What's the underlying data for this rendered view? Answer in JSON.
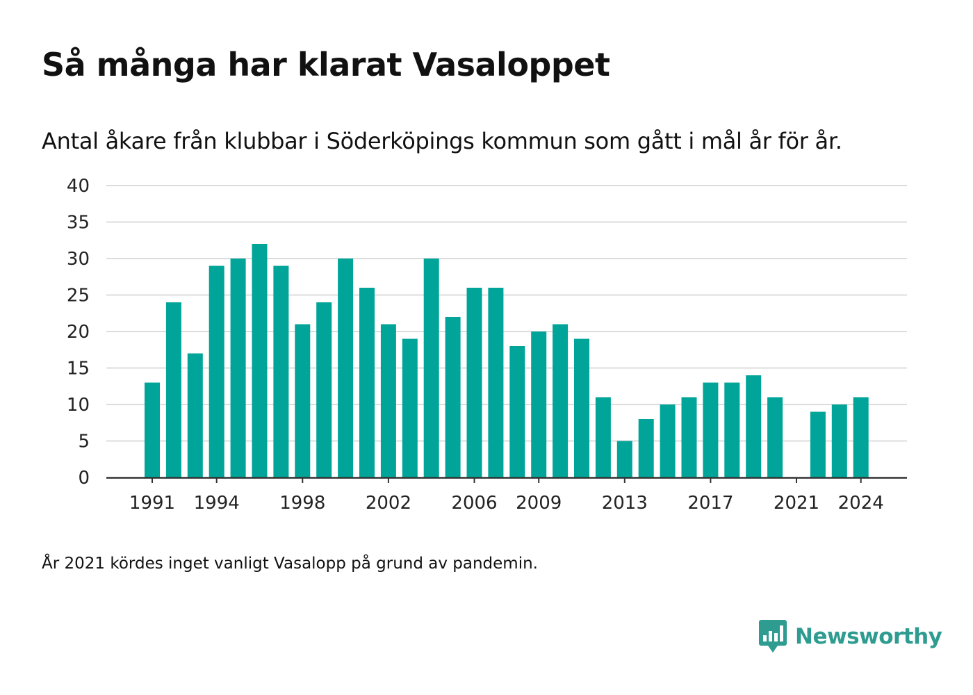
{
  "header": {
    "title": "Så många har klarat Vasaloppet",
    "subtitle": "Antal åkare från klubbar i Söderköpings kommun som gått i mål år för år."
  },
  "footnote": "År 2021 kördes inget vanligt Vasalopp på grund av pandemin.",
  "brand": {
    "name": "Newsworthy",
    "icon": "newsworthy-logo-icon",
    "color": "#2e9c90"
  },
  "chart_data": {
    "type": "bar",
    "x": [
      1991,
      1992,
      1993,
      1994,
      1995,
      1996,
      1997,
      1998,
      1999,
      2000,
      2001,
      2002,
      2003,
      2004,
      2005,
      2006,
      2007,
      2008,
      2009,
      2010,
      2011,
      2012,
      2013,
      2014,
      2015,
      2016,
      2017,
      2018,
      2019,
      2020,
      2021,
      2022,
      2023,
      2024
    ],
    "values": [
      13,
      24,
      17,
      29,
      30,
      32,
      29,
      21,
      24,
      30,
      26,
      21,
      19,
      30,
      22,
      26,
      26,
      18,
      20,
      21,
      19,
      11,
      5,
      8,
      10,
      11,
      13,
      13,
      14,
      11,
      0,
      9,
      10,
      11
    ],
    "x_tick_labels": [
      1991,
      1994,
      1998,
      2002,
      2006,
      2009,
      2013,
      2017,
      2021,
      2024
    ],
    "y_ticks": [
      0,
      5,
      10,
      15,
      20,
      25,
      30,
      35,
      40
    ],
    "ylim": [
      0,
      40
    ],
    "grid": true,
    "bar_color": "#00a499",
    "xlabel": "",
    "ylabel": ""
  }
}
